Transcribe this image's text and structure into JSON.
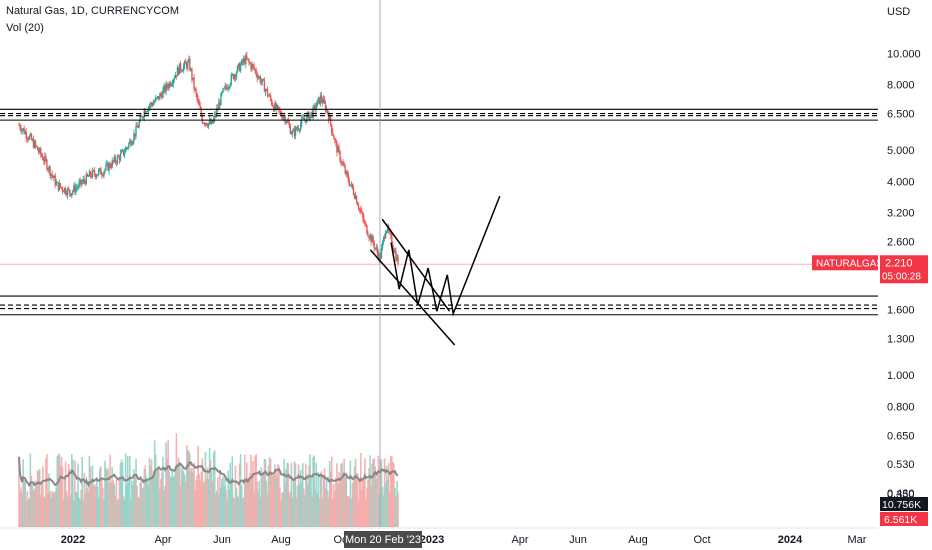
{
  "header": {
    "title": "Natural Gas, 1D, CURRENCYCOM",
    "volume_label": "Vol (20)"
  },
  "chart_data": {
    "type": "candlestick",
    "symbol": "NATURALGAS",
    "currency_label": "USD",
    "price_axis": {
      "scale": "log",
      "range": [
        0.33,
        11.0
      ],
      "ticks": [
        "10.000",
        "8.000",
        "6.500",
        "5.000",
        "4.000",
        "3.200",
        "2.600",
        "1.600",
        "1.300",
        "1.000",
        "0.800",
        "0.650",
        "0.530",
        "0.430",
        "0.350"
      ]
    },
    "time_axis": {
      "ticks": [
        "2022",
        "Apr",
        "Jun",
        "Aug",
        "Oct",
        "2023",
        "Apr",
        "Jun",
        "Aug",
        "Oct",
        "2024",
        "Mar"
      ],
      "crosshair_label": "Mon 20 Feb '23"
    },
    "last_price": {
      "label": "NATURALGAS",
      "value": "2.210",
      "countdown": "05:00:28",
      "color": "#f23645"
    },
    "volume_labels": {
      "vol": "10.756K",
      "vol_ma": "6.561K"
    },
    "price_path": [
      [
        "2021-10-20",
        6.0
      ],
      [
        "2021-11-05",
        5.4
      ],
      [
        "2021-11-25",
        4.6
      ],
      [
        "2021-12-10",
        3.9
      ],
      [
        "2021-12-28",
        3.7
      ],
      [
        "2022-01-10",
        3.9
      ],
      [
        "2022-01-25",
        4.2
      ],
      [
        "2022-02-10",
        4.3
      ],
      [
        "2022-02-25",
        4.6
      ],
      [
        "2022-03-10",
        4.9
      ],
      [
        "2022-03-25",
        5.6
      ],
      [
        "2022-04-08",
        6.7
      ],
      [
        "2022-04-25",
        7.2
      ],
      [
        "2022-05-10",
        8.0
      ],
      [
        "2022-05-25",
        9.0
      ],
      [
        "2022-06-07",
        9.3
      ],
      [
        "2022-06-15",
        7.6
      ],
      [
        "2022-06-25",
        6.2
      ],
      [
        "2022-07-08",
        6.0
      ],
      [
        "2022-07-22",
        7.5
      ],
      [
        "2022-08-05",
        8.5
      ],
      [
        "2022-08-22",
        9.6
      ],
      [
        "2022-09-02",
        9.0
      ],
      [
        "2022-09-15",
        8.0
      ],
      [
        "2022-09-30",
        6.8
      ],
      [
        "2022-10-15",
        6.3
      ],
      [
        "2022-10-25",
        5.6
      ],
      [
        "2022-11-08",
        6.2
      ],
      [
        "2022-11-20",
        6.5
      ],
      [
        "2022-12-02",
        7.3
      ],
      [
        "2022-12-12",
        6.5
      ],
      [
        "2022-12-22",
        5.2
      ],
      [
        "2023-01-05",
        4.2
      ],
      [
        "2023-01-18",
        3.6
      ],
      [
        "2023-01-31",
        2.9
      ],
      [
        "2023-02-10",
        2.6
      ],
      [
        "2023-02-20",
        2.3
      ],
      [
        "2023-02-28",
        2.9
      ],
      [
        "2023-03-08",
        2.6
      ],
      [
        "2023-03-17",
        2.21
      ]
    ],
    "volume_bands": {
      "low": 0.33,
      "high": 0.72
    },
    "horizontal_levels": [
      {
        "kind": "solid",
        "price": 6.7
      },
      {
        "kind": "dashed",
        "price": 6.5
      },
      {
        "kind": "dashed",
        "price": 6.4
      },
      {
        "kind": "solid",
        "price": 6.2
      },
      {
        "kind": "solid",
        "price": 1.76
      },
      {
        "kind": "dashed",
        "price": 1.65
      },
      {
        "kind": "dashed",
        "price": 1.61
      },
      {
        "kind": "solid",
        "price": 1.54
      }
    ],
    "drawings": [
      {
        "kind": "upper-trend",
        "from": [
          "2023-02-23",
          3.05
        ],
        "to": [
          "2023-05-25",
          1.58
        ]
      },
      {
        "kind": "lower-trend",
        "from": [
          "2023-02-07",
          2.45
        ],
        "to": [
          "2023-06-01",
          1.24
        ]
      },
      {
        "kind": "projection",
        "points": [
          [
            "2023-03-07",
            2.58
          ],
          [
            "2023-03-18",
            1.85
          ],
          [
            "2023-03-31",
            2.45
          ],
          [
            "2023-04-12",
            1.65
          ],
          [
            "2023-04-26",
            2.15
          ],
          [
            "2023-05-08",
            1.58
          ],
          [
            "2023-05-22",
            2.05
          ],
          [
            "2023-05-30",
            1.55
          ],
          [
            "2023-08-01",
            3.6
          ]
        ]
      }
    ]
  }
}
